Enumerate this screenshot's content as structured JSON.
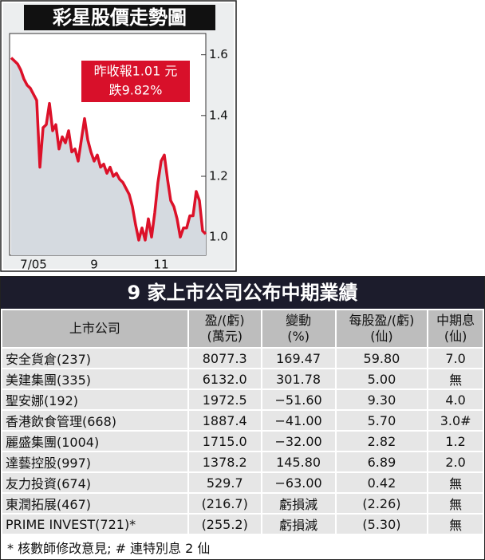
{
  "chart_data": {
    "type": "line",
    "title": "彩星股價走勢圖",
    "annotation": [
      "昨收報1.01 元",
      "跌9.82%"
    ],
    "categories": [
      null,
      null,
      null,
      null,
      null,
      null,
      null,
      "7/05",
      null,
      null,
      null,
      null,
      null,
      null,
      null,
      null,
      null,
      null,
      null,
      null,
      null,
      null,
      null,
      null,
      null,
      null,
      "9",
      null,
      null,
      null,
      null,
      null,
      null,
      null,
      null,
      null,
      null,
      null,
      null,
      null,
      null,
      null,
      null,
      null,
      null,
      null,
      null,
      "11",
      null,
      null,
      null,
      null,
      null,
      null,
      null,
      null,
      null,
      null,
      null,
      null,
      null,
      null
    ],
    "series": [
      {
        "color": "#dc1129",
        "values": [
          1.59,
          1.58,
          1.57,
          1.55,
          1.52,
          1.5,
          1.49,
          1.47,
          1.45,
          1.23,
          1.36,
          1.37,
          1.44,
          1.35,
          1.37,
          1.29,
          1.33,
          1.31,
          1.35,
          1.28,
          1.29,
          1.25,
          1.32,
          1.39,
          1.32,
          1.28,
          1.25,
          1.27,
          1.23,
          1.24,
          1.21,
          1.23,
          1.2,
          1.21,
          1.19,
          1.18,
          1.16,
          1.14,
          1.1,
          1.04,
          0.99,
          1.03,
          0.99,
          1.06,
          1.0,
          1.08,
          1.18,
          1.25,
          1.27,
          1.19,
          1.12,
          1.1,
          1.06,
          1.0,
          1.03,
          1.03,
          1.07,
          1.07,
          1.15,
          1.12,
          1.02,
          1.01
        ]
      }
    ],
    "ylim": [
      0.94,
      1.67
    ],
    "yticks": [
      {
        "value": 1,
        "label": "1.0"
      },
      1.2,
      1.4,
      1.6
    ]
  },
  "table": {
    "title": "9 家上市公司公布中期業績",
    "header": [
      [
        "上市公司"
      ],
      [
        "盈/(虧)",
        "(萬元)"
      ],
      [
        "變動",
        "(%)"
      ],
      [
        "每股盈/(虧)",
        "(仙)"
      ],
      [
        "中期息",
        "(仙)"
      ]
    ],
    "rows": [
      [
        "安全貨倉(237)",
        "8077.3",
        "169.47",
        "59.80",
        "7.0"
      ],
      [
        "美建集團(335)",
        "6132.0",
        "301.78",
        "5.00",
        "無"
      ],
      [
        "聖安娜(192)",
        "1972.5",
        "−51.60",
        "9.30",
        "4.0"
      ],
      [
        "香港飲食管理(668)",
        "1887.4",
        "−41.00",
        "5.70",
        "3.0#"
      ],
      [
        "麗盛集團(1004)",
        "1715.0",
        "−32.00",
        "2.82",
        "1.2"
      ],
      [
        "達藝控股(997)",
        "1378.2",
        "145.80",
        "6.89",
        "2.0"
      ],
      [
        "友力投資(674)",
        "529.7",
        "−63.00",
        "0.42",
        "無"
      ],
      [
        "東潤拓展(467)",
        "(216.7)",
        "虧損減",
        "(2.26)",
        "無"
      ],
      [
        "PRIME INVEST(721)*",
        "(255.2)",
        "虧損減",
        "(5.30)",
        "無"
      ]
    ],
    "footnote": "* 核數師修改意見; # 連特別息 2 仙"
  }
}
